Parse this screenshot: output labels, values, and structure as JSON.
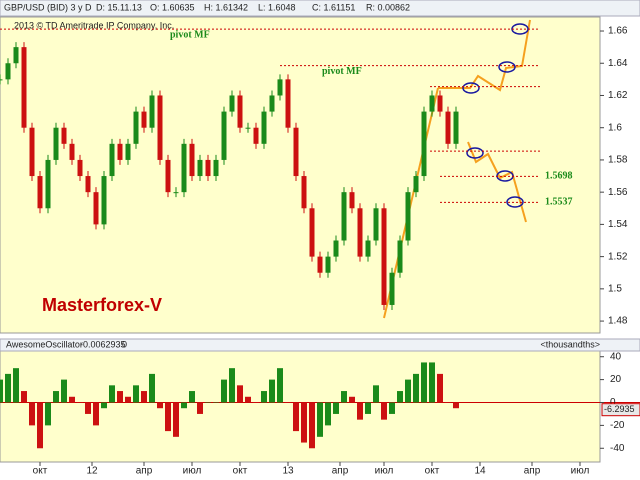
{
  "chart_data": [
    {
      "type": "price",
      "title": "GBP/USD (BID) 3 y D",
      "ohlc_labels": [
        "D: 15.11.13",
        "O: 1.60635",
        "H: 1.61342",
        "L: 1.6048",
        "C: 1.61151",
        "R: 0.00862"
      ],
      "copyright": "2013 © TD Ameritrade IP Company, Inc.",
      "watermark": "Masterforex-V",
      "up_color": "#1a8a1a",
      "down_color": "#cc1111",
      "xlim": [
        0,
        150
      ],
      "x": [
        0,
        2,
        4,
        6,
        8,
        10,
        12,
        14,
        16,
        18,
        20,
        22,
        24,
        26,
        28,
        30,
        32,
        34,
        36,
        38,
        40,
        42,
        44,
        46,
        48,
        50,
        52,
        54,
        56,
        58,
        60,
        62,
        64,
        66,
        68,
        70,
        72,
        74,
        76,
        78,
        80,
        82,
        84,
        86,
        88,
        90,
        92,
        94,
        96,
        98,
        100,
        102,
        104,
        106,
        108,
        110,
        112,
        114
      ],
      "values": [
        1.63,
        1.64,
        1.65,
        1.6,
        1.57,
        1.55,
        1.58,
        1.6,
        1.59,
        1.58,
        1.57,
        1.56,
        1.54,
        1.57,
        1.59,
        1.58,
        1.59,
        1.61,
        1.6,
        1.62,
        1.58,
        1.56,
        1.56,
        1.59,
        1.57,
        1.58,
        1.57,
        1.58,
        1.61,
        1.62,
        1.6,
        1.6,
        1.59,
        1.61,
        1.62,
        1.63,
        1.6,
        1.57,
        1.55,
        1.52,
        1.51,
        1.52,
        1.53,
        1.56,
        1.55,
        1.52,
        1.53,
        1.55,
        1.49,
        1.51,
        1.53,
        1.56,
        1.57,
        1.61,
        1.62,
        1.61,
        1.59,
        1.61
      ],
      "ylim": [
        1.4726,
        1.6687
      ],
      "yticks": [
        1.48,
        1.5,
        1.52,
        1.54,
        1.56,
        1.58,
        1.6,
        1.62,
        1.64,
        1.66
      ],
      "pivots": [
        {
          "text": "pivot MF",
          "value": 1.6612
        },
        {
          "text": "pivot MF",
          "value": 1.6385
        }
      ],
      "levels": [
        1.6255,
        1.5855,
        {
          "value": 1.5698,
          "label": "1.5698"
        },
        {
          "value": 1.5537,
          "label": "1.5537"
        }
      ]
    },
    {
      "type": "histogram",
      "title": "AwesomeOscillator",
      "value_label": "-0.0062935",
      "parameter": "0",
      "unit_label": "<thousandths>",
      "last_value": -6.2935,
      "up_color": "#1a8a1a",
      "down_color": "#cc1111",
      "xlim": [
        0,
        150
      ],
      "xticks": [
        {
          "value": 10,
          "label": "окт"
        },
        {
          "value": 23,
          "label": "12"
        },
        {
          "value": 36,
          "label": "апр"
        },
        {
          "value": 48,
          "label": "июл"
        },
        {
          "value": 60,
          "label": "окт"
        },
        {
          "value": 72,
          "label": "13"
        },
        {
          "value": 85,
          "label": "апр"
        },
        {
          "value": 96,
          "label": "июл"
        },
        {
          "value": 108,
          "label": "окт"
        },
        {
          "value": 120,
          "label": "14"
        },
        {
          "value": 133,
          "label": "апр"
        },
        {
          "value": 145,
          "label": "июл"
        }
      ],
      "x": [
        0,
        2,
        4,
        6,
        8,
        10,
        12,
        14,
        16,
        18,
        20,
        22,
        24,
        26,
        28,
        30,
        32,
        34,
        36,
        38,
        40,
        42,
        44,
        46,
        48,
        50,
        52,
        54,
        56,
        58,
        60,
        62,
        64,
        66,
        68,
        70,
        72,
        74,
        76,
        78,
        80,
        82,
        84,
        86,
        88,
        90,
        92,
        94,
        96,
        98,
        100,
        102,
        104,
        106,
        108,
        110,
        112,
        114
      ],
      "values": [
        20,
        25,
        30,
        10,
        -20,
        -40,
        -20,
        10,
        20,
        5,
        0,
        -10,
        -20,
        -5,
        15,
        10,
        5,
        15,
        10,
        25,
        -5,
        -25,
        -30,
        -5,
        10,
        -10,
        0,
        0,
        20,
        30,
        15,
        5,
        0,
        10,
        20,
        30,
        0,
        -25,
        -35,
        -40,
        -30,
        -20,
        -10,
        10,
        5,
        -15,
        -10,
        15,
        -15,
        -10,
        10,
        20,
        25,
        35,
        35,
        25,
        0,
        -5
      ],
      "ylim": [
        -52,
        45
      ],
      "yticks": [
        -40,
        -20,
        0,
        20,
        40
      ]
    }
  ]
}
